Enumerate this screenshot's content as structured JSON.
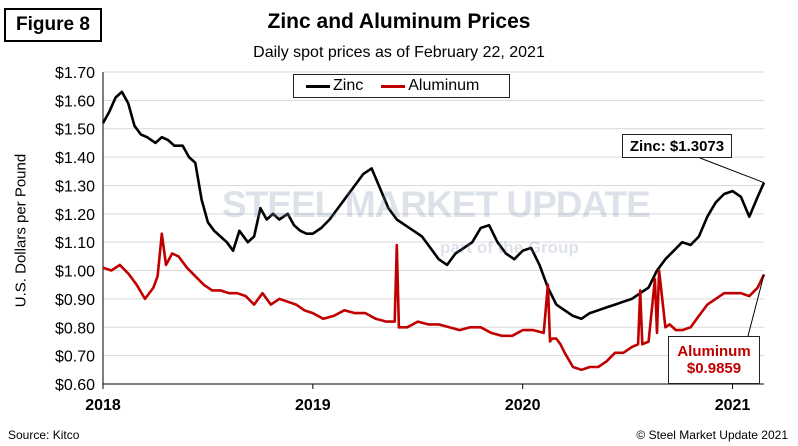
{
  "figure_label": "Figure 8",
  "source": "Source: Kitco",
  "copyright": "© Steel Market Update 2021",
  "watermark": {
    "brand": "STEEL MARKET UPDATE",
    "sub": "part of the Group"
  },
  "colors": {
    "zinc": "#000000",
    "aluminum": "#c00000",
    "grid": "#d9d9d9"
  },
  "chart_data": {
    "type": "line",
    "title": "Zinc and Aluminum Prices",
    "subtitle": "Daily spot prices as of February 22, 2021",
    "ylabel": "U.S. Dollars per Pound",
    "xlabel": "",
    "ylim": [
      0.6,
      1.7
    ],
    "y_ticks": [
      "$0.60",
      "$0.70",
      "$0.80",
      "$0.90",
      "$1.00",
      "$1.10",
      "$1.20",
      "$1.30",
      "$1.40",
      "$1.50",
      "$1.60",
      "$1.70"
    ],
    "y_tick_values": [
      0.6,
      0.7,
      0.8,
      0.9,
      1.0,
      1.1,
      1.2,
      1.3,
      1.4,
      1.5,
      1.6,
      1.7
    ],
    "xlim": [
      2018.0,
      2021.15
    ],
    "x_ticks": [
      "2018",
      "2019",
      "2020",
      "2021"
    ],
    "x_tick_values": [
      2018,
      2019,
      2020,
      2021
    ],
    "grid": true,
    "legend_position": "top-center",
    "series": [
      {
        "name": "Zinc",
        "x": [
          2018.0,
          2018.03,
          2018.06,
          2018.09,
          2018.12,
          2018.15,
          2018.18,
          2018.21,
          2018.25,
          2018.28,
          2018.31,
          2018.34,
          2018.38,
          2018.41,
          2018.44,
          2018.47,
          2018.5,
          2018.53,
          2018.56,
          2018.59,
          2018.62,
          2018.65,
          2018.69,
          2018.72,
          2018.75,
          2018.78,
          2018.81,
          2018.84,
          2018.88,
          2018.91,
          2018.94,
          2018.97,
          2019.0,
          2019.04,
          2019.08,
          2019.12,
          2019.16,
          2019.2,
          2019.24,
          2019.28,
          2019.32,
          2019.36,
          2019.4,
          2019.44,
          2019.48,
          2019.52,
          2019.56,
          2019.6,
          2019.64,
          2019.68,
          2019.72,
          2019.76,
          2019.8,
          2019.84,
          2019.88,
          2019.92,
          2019.96,
          2020.0,
          2020.04,
          2020.08,
          2020.12,
          2020.16,
          2020.2,
          2020.24,
          2020.28,
          2020.32,
          2020.36,
          2020.4,
          2020.44,
          2020.48,
          2020.52,
          2020.56,
          2020.6,
          2020.64,
          2020.68,
          2020.72,
          2020.76,
          2020.8,
          2020.84,
          2020.88,
          2020.92,
          2020.96,
          2021.0,
          2021.04,
          2021.08,
          2021.12,
          2021.15
        ],
        "values": [
          1.52,
          1.56,
          1.61,
          1.63,
          1.59,
          1.51,
          1.48,
          1.47,
          1.45,
          1.47,
          1.46,
          1.44,
          1.44,
          1.4,
          1.38,
          1.25,
          1.17,
          1.14,
          1.12,
          1.1,
          1.07,
          1.14,
          1.1,
          1.12,
          1.22,
          1.18,
          1.2,
          1.18,
          1.2,
          1.16,
          1.14,
          1.13,
          1.13,
          1.15,
          1.18,
          1.22,
          1.26,
          1.3,
          1.34,
          1.36,
          1.29,
          1.22,
          1.18,
          1.16,
          1.14,
          1.12,
          1.08,
          1.04,
          1.02,
          1.06,
          1.08,
          1.1,
          1.15,
          1.16,
          1.1,
          1.06,
          1.04,
          1.07,
          1.08,
          1.02,
          0.94,
          0.88,
          0.86,
          0.84,
          0.83,
          0.85,
          0.86,
          0.87,
          0.88,
          0.89,
          0.9,
          0.92,
          0.94,
          1.0,
          1.04,
          1.07,
          1.1,
          1.09,
          1.12,
          1.19,
          1.24,
          1.27,
          1.28,
          1.26,
          1.19,
          1.26,
          1.31
        ]
      },
      {
        "name": "Aluminum",
        "x": [
          2018.0,
          2018.04,
          2018.08,
          2018.12,
          2018.16,
          2018.2,
          2018.24,
          2018.26,
          2018.28,
          2018.3,
          2018.33,
          2018.36,
          2018.4,
          2018.44,
          2018.48,
          2018.52,
          2018.56,
          2018.6,
          2018.64,
          2018.68,
          2018.72,
          2018.76,
          2018.8,
          2018.84,
          2018.88,
          2018.92,
          2018.96,
          2019.0,
          2019.05,
          2019.1,
          2019.15,
          2019.2,
          2019.25,
          2019.3,
          2019.35,
          2019.39,
          2019.4,
          2019.41,
          2019.45,
          2019.5,
          2019.55,
          2019.6,
          2019.65,
          2019.7,
          2019.75,
          2019.8,
          2019.85,
          2019.9,
          2019.95,
          2020.0,
          2020.05,
          2020.1,
          2020.12,
          2020.13,
          2020.14,
          2020.16,
          2020.18,
          2020.2,
          2020.24,
          2020.28,
          2020.32,
          2020.36,
          2020.4,
          2020.44,
          2020.48,
          2020.52,
          2020.55,
          2020.56,
          2020.57,
          2020.6,
          2020.63,
          2020.64,
          2020.65,
          2020.68,
          2020.7,
          2020.73,
          2020.76,
          2020.8,
          2020.84,
          2020.88,
          2020.92,
          2020.96,
          2021.0,
          2021.04,
          2021.08,
          2021.12,
          2021.15
        ],
        "values": [
          1.01,
          1.0,
          1.02,
          0.99,
          0.95,
          0.9,
          0.94,
          0.98,
          1.13,
          1.02,
          1.06,
          1.05,
          1.01,
          0.98,
          0.95,
          0.93,
          0.93,
          0.92,
          0.92,
          0.91,
          0.88,
          0.92,
          0.88,
          0.9,
          0.89,
          0.88,
          0.86,
          0.85,
          0.83,
          0.84,
          0.86,
          0.85,
          0.85,
          0.83,
          0.82,
          0.82,
          1.09,
          0.8,
          0.8,
          0.82,
          0.81,
          0.81,
          0.8,
          0.79,
          0.8,
          0.8,
          0.78,
          0.77,
          0.77,
          0.79,
          0.79,
          0.78,
          0.95,
          0.75,
          0.76,
          0.76,
          0.74,
          0.71,
          0.66,
          0.65,
          0.66,
          0.66,
          0.68,
          0.71,
          0.71,
          0.73,
          0.74,
          0.93,
          0.74,
          0.75,
          0.97,
          0.78,
          1.0,
          0.8,
          0.81,
          0.79,
          0.79,
          0.8,
          0.84,
          0.88,
          0.9,
          0.92,
          0.92,
          0.92,
          0.91,
          0.94,
          0.9859
        ]
      }
    ],
    "annotations": [
      {
        "label": "Zinc: $1.3073",
        "series": "Zinc",
        "x": 2021.15,
        "y": 1.3073
      },
      {
        "label_line1": "Aluminum",
        "label_line2": "$0.9859",
        "series": "Aluminum",
        "x": 2021.15,
        "y": 0.9859
      }
    ]
  }
}
